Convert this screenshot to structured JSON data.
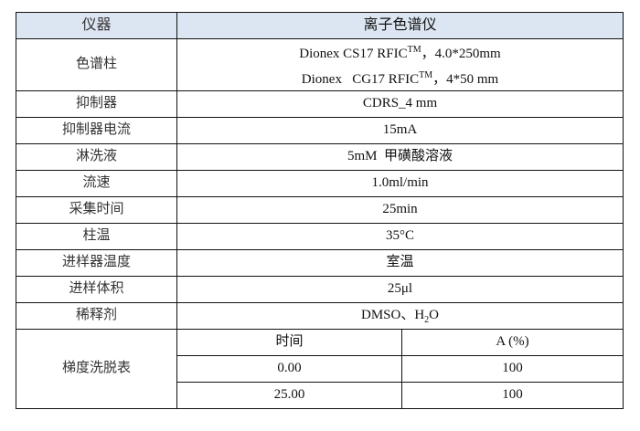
{
  "header": {
    "label": "仪器",
    "value": "离子色谱仪"
  },
  "column": {
    "label": "色谱柱",
    "line1": {
      "pre": "Dionex CS17 RFIC",
      "tm": "TM",
      "post": "，4.0*250mm"
    },
    "line2": {
      "pre": "Dionex   CG17 RFIC",
      "tm": "TM",
      "post": "，4*50 mm"
    }
  },
  "rows": [
    {
      "label": "抑制器",
      "value": "CDRS_4 mm"
    },
    {
      "label": "抑制器电流",
      "value": "15mA"
    },
    {
      "label": "淋洗液",
      "value": "5mM  甲磺酸溶液"
    },
    {
      "label": "流速",
      "value": "1.0ml/min"
    },
    {
      "label": "采集时间",
      "value": "25min"
    },
    {
      "label": "柱温",
      "value": "35°C"
    },
    {
      "label": "进样器温度",
      "value": "室温"
    },
    {
      "label": "进样体积",
      "value": "25μl"
    }
  ],
  "diluent": {
    "label": "稀释剂",
    "pre": "DMSO、H",
    "sub": "2",
    "post": "O"
  },
  "gradient": {
    "label": "梯度洗脱表",
    "headers": [
      "时间",
      "A (%)"
    ],
    "rows": [
      [
        "0.00",
        "100"
      ],
      [
        "25.00",
        "100"
      ]
    ]
  },
  "colors": {
    "header_bg": "#dce6f2",
    "border": "#111111"
  }
}
